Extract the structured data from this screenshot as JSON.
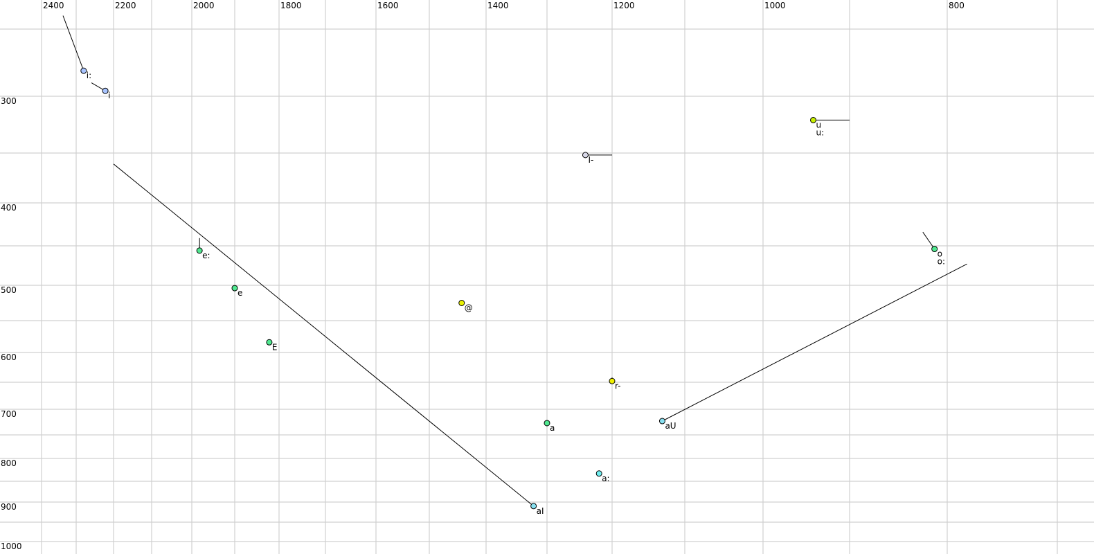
{
  "chart_data": {
    "type": "scatter",
    "title": "",
    "xlabel": "",
    "ylabel": "",
    "x_axis": {
      "quantity": "F2",
      "reversed": true,
      "ticks": [
        2400,
        2200,
        2000,
        1800,
        1600,
        1400,
        1200,
        1000,
        800
      ],
      "grid_step": 100
    },
    "y_axis": {
      "quantity": "F1",
      "reversed": false,
      "ticks": [
        300,
        400,
        500,
        600,
        700,
        800,
        900,
        1000
      ],
      "grid_step": 50
    },
    "grid": true,
    "points": [
      {
        "labels": [
          "i:"
        ],
        "f2": 2280,
        "f1": 281,
        "color": "#a8c4ff",
        "trajectory": [
          [
            2338,
            240
          ],
          [
            2280,
            281
          ]
        ]
      },
      {
        "labels": [
          "i"
        ],
        "f2": 2222,
        "f1": 296,
        "color": "#a8c4ff",
        "trajectory": [
          [
            2259,
            290
          ],
          [
            2222,
            296
          ]
        ]
      },
      {
        "labels": [
          "e:"
        ],
        "f2": 1982,
        "f1": 456,
        "color": "#50e890",
        "trajectory": [
          [
            1982,
            441
          ],
          [
            1982,
            456
          ]
        ]
      },
      {
        "labels": [
          "e"
        ],
        "f2": 1900,
        "f1": 504,
        "color": "#50e890"
      },
      {
        "labels": [
          "E"
        ],
        "f2": 1822,
        "f1": 584,
        "color": "#50e890"
      },
      {
        "labels": [
          "@"
        ],
        "f2": 1443,
        "f1": 525,
        "color": "#e8f000"
      },
      {
        "labels": [
          "I-"
        ],
        "f2": 1241,
        "f1": 352,
        "color": "#d8d8e8",
        "trajectory": [
          [
            1241,
            352
          ],
          [
            1200,
            352
          ]
        ]
      },
      {
        "labels": [
          "u",
          "u:"
        ],
        "f2": 942,
        "f1": 321,
        "color": "#c8f000",
        "trajectory": [
          [
            942,
            321
          ],
          [
            900,
            321
          ]
        ]
      },
      {
        "labels": [
          "o",
          "o:"
        ],
        "f2": 813,
        "f1": 454,
        "color": "#50e890",
        "trajectory": [
          [
            825,
            434
          ],
          [
            813,
            454
          ]
        ]
      },
      {
        "labels": [
          "r-"
        ],
        "f2": 1200,
        "f1": 648,
        "color": "#f0f000",
        "trajectory": [
          [
            1200,
            642
          ],
          [
            1200,
            648
          ]
        ]
      },
      {
        "labels": [
          "a"
        ],
        "f2": 1300,
        "f1": 727,
        "color": "#50e890",
        "trajectory": [
          [
            1300,
            727
          ],
          [
            1300,
            733
          ]
        ]
      },
      {
        "labels": [
          "aU"
        ],
        "f2": 1131,
        "f1": 723,
        "color": "#88e0f0",
        "trajectory": [
          [
            1131,
            723
          ],
          [
            782,
            473
          ]
        ]
      },
      {
        "labels": [
          "a:"
        ],
        "f2": 1220,
        "f1": 833,
        "color": "#70eef0"
      },
      {
        "labels": [
          "aI"
        ],
        "f2": 1322,
        "f1": 910,
        "color": "#88e0f0",
        "trajectory": [
          [
            2200,
            361
          ],
          [
            1322,
            910
          ]
        ]
      }
    ]
  }
}
